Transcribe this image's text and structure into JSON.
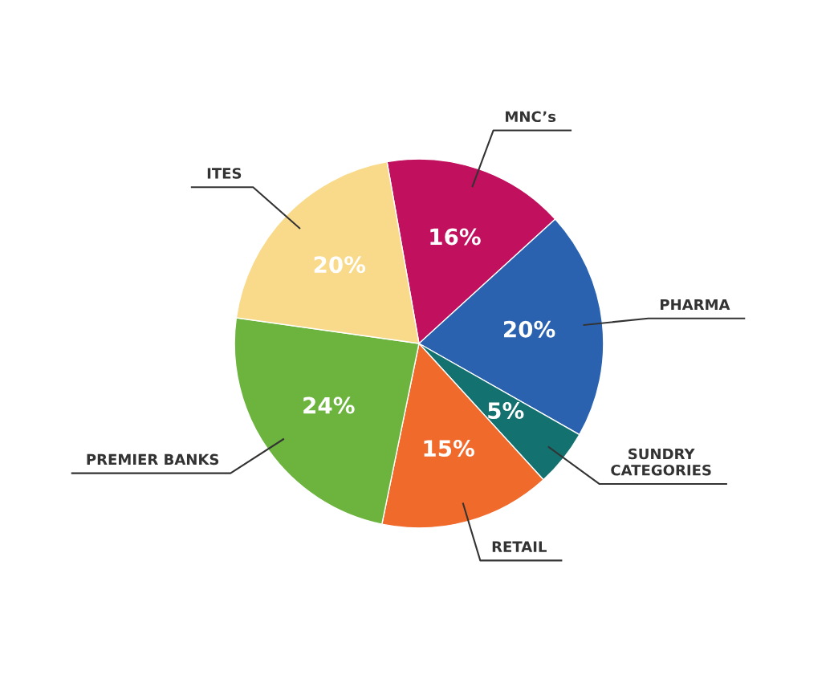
{
  "chart_data": {
    "type": "pie",
    "categories": [
      "MNC’s",
      "PHARMA",
      "SUNDRY\nCATEGORIES",
      "RETAIL",
      "PREMIER BANKS",
      "ITES"
    ],
    "values": [
      16,
      20,
      5,
      15,
      24,
      20
    ],
    "colors": [
      "#c0105e",
      "#2a62b0",
      "#13716f",
      "#f06a2c",
      "#6cb43e",
      "#f8da8a"
    ],
    "value_labels": [
      "16%",
      "20%",
      "5%",
      "15%",
      "24%",
      "20%"
    ]
  }
}
